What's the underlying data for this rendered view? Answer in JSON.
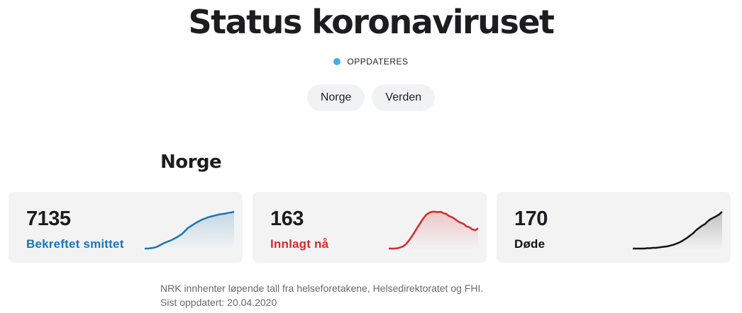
{
  "header": {
    "title": "Status koronaviruset",
    "status_text": "OPPDATERES"
  },
  "tabs": [
    {
      "label": "Norge"
    },
    {
      "label": "Verden"
    }
  ],
  "section": {
    "title": "Norge"
  },
  "cards": [
    {
      "value": "7135",
      "label": "Bekreftet smittet",
      "color": "#1b75b1",
      "series": [
        0,
        0,
        0.01,
        0.02,
        0.04,
        0.08,
        0.12,
        0.16,
        0.19,
        0.22,
        0.26,
        0.3,
        0.35,
        0.4,
        0.48,
        0.56,
        0.61,
        0.66,
        0.71,
        0.75,
        0.79,
        0.82,
        0.85,
        0.87,
        0.89,
        0.91,
        0.93,
        0.94,
        0.95,
        0.97,
        0.98,
        1.0
      ]
    },
    {
      "value": "163",
      "label": "Innlagt nå",
      "color": "#d42b2b",
      "series": [
        0,
        0,
        0,
        0.01,
        0.03,
        0.06,
        0.12,
        0.22,
        0.33,
        0.45,
        0.58,
        0.7,
        0.82,
        0.92,
        0.97,
        1.0,
        1.0,
        0.99,
        1.0,
        0.96,
        0.94,
        0.88,
        0.85,
        0.8,
        0.74,
        0.7,
        0.67,
        0.6,
        0.58,
        0.52,
        0.5,
        0.55
      ]
    },
    {
      "value": "170",
      "label": "Døde",
      "color": "#111111",
      "series": [
        0,
        0,
        0,
        0,
        0,
        0.01,
        0.01,
        0.02,
        0.02,
        0.03,
        0.04,
        0.05,
        0.06,
        0.08,
        0.1,
        0.13,
        0.16,
        0.2,
        0.25,
        0.3,
        0.36,
        0.42,
        0.5,
        0.56,
        0.62,
        0.66,
        0.74,
        0.8,
        0.84,
        0.88,
        0.93,
        1.0
      ]
    }
  ],
  "footer": {
    "source": "NRK innhenter løpende tall fra helseforetakene, Helsedirektoratet og FHI.",
    "updated": "Sist oppdatert: 20.04.2020"
  }
}
